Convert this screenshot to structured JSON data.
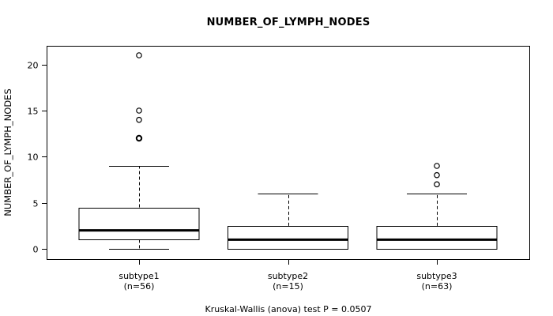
{
  "figure": {
    "title": "NUMBER_OF_LYMPH_NODES",
    "caption": "Kruskal-Wallis (anova) test P = 0.0507"
  },
  "chart_data": {
    "type": "boxplot",
    "title": "NUMBER_OF_LYMPH_NODES",
    "ylabel": "NUMBER_OF_LYMPH_NODES",
    "xlabel": "",
    "ylim": [
      0,
      21
    ],
    "yticks": [
      0,
      5,
      10,
      15,
      20
    ],
    "grid": false,
    "legend": "none",
    "caption": "Kruskal-Wallis (anova) test P = 0.0507",
    "groups": [
      {
        "label": "subtype1",
        "n_label": "(n=56)",
        "whisker_low": 0,
        "q1": 1,
        "median": 2,
        "q3": 4.5,
        "whisker_high": 9,
        "outliers": [
          12,
          12,
          14,
          15,
          21
        ]
      },
      {
        "label": "subtype2",
        "n_label": "(n=15)",
        "whisker_low": 0,
        "q1": 0,
        "median": 1,
        "q3": 2.5,
        "whisker_high": 6,
        "outliers": []
      },
      {
        "label": "subtype3",
        "n_label": "(n=63)",
        "whisker_low": 0,
        "q1": 0,
        "median": 1,
        "q3": 2.5,
        "whisker_high": 6,
        "outliers": [
          7,
          8,
          9
        ]
      }
    ],
    "colors": {
      "line": "#000000",
      "box_fill": "#ffffff",
      "background": "#ffffff",
      "text": "#000000"
    }
  }
}
